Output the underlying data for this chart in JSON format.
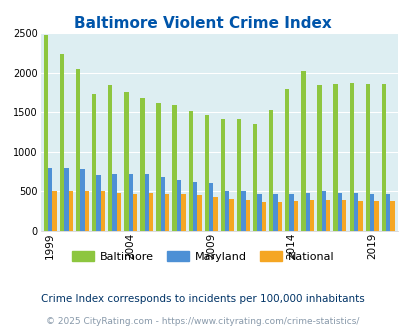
{
  "title": "Baltimore Violent Crime Index",
  "years": [
    1999,
    2000,
    2001,
    2002,
    2003,
    2004,
    2005,
    2006,
    2007,
    2008,
    2009,
    2010,
    2011,
    2012,
    2013,
    2014,
    2015,
    2016,
    2017,
    2018,
    2019,
    2020
  ],
  "baltimore": [
    2480,
    2230,
    2050,
    1730,
    1840,
    1760,
    1680,
    1620,
    1585,
    1510,
    1470,
    1420,
    1410,
    1350,
    1530,
    1790,
    2020,
    1840,
    1850,
    1870,
    1850,
    1860
  ],
  "maryland": [
    790,
    790,
    785,
    710,
    720,
    720,
    720,
    680,
    650,
    620,
    600,
    510,
    505,
    470,
    465,
    470,
    480,
    500,
    480,
    480,
    470,
    465
  ],
  "national": [
    510,
    505,
    505,
    500,
    480,
    470,
    480,
    470,
    465,
    450,
    430,
    400,
    390,
    370,
    365,
    375,
    395,
    390,
    395,
    385,
    380,
    380
  ],
  "colors": {
    "baltimore": "#8dc63f",
    "maryland": "#4d90d5",
    "national": "#f5a623"
  },
  "bg_color": "#ddeef2",
  "ylim": [
    0,
    2500
  ],
  "yticks": [
    0,
    500,
    1000,
    1500,
    2000,
    2500
  ],
  "xtick_years": [
    1999,
    2004,
    2009,
    2014,
    2019
  ],
  "legend_labels": [
    "Baltimore",
    "Maryland",
    "National"
  ],
  "footnote1": "Crime Index corresponds to incidents per 100,000 inhabitants",
  "footnote2": "© 2025 CityRating.com - https://www.cityrating.com/crime-statistics/",
  "title_color": "#0055aa",
  "footnote1_color": "#003366",
  "footnote2_color": "#8899aa"
}
